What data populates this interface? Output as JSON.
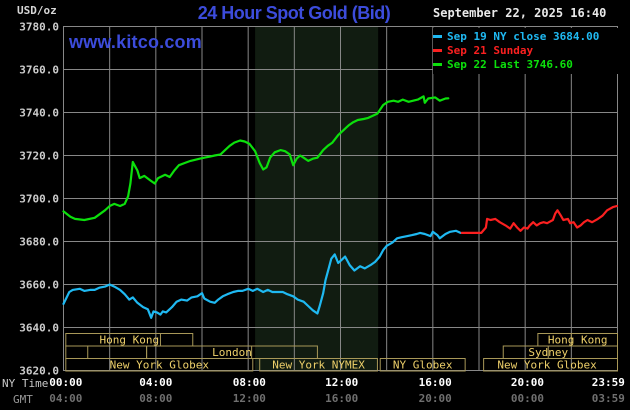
{
  "header": {
    "units_label": "USD/oz",
    "title": "24 Hour Spot Gold (Bid)",
    "datetime": "September 22, 2025 16:40",
    "watermark": "www.kitco.com"
  },
  "legend": {
    "position": "top-right",
    "items": [
      {
        "label": "Sep 19 NY close 3684.00",
        "color": "#1fb9f2"
      },
      {
        "label": "Sep 21 Sunday",
        "color": "#fb2020"
      },
      {
        "label": "Sep 22 Last 3746.60",
        "color": "#0ce00c"
      }
    ]
  },
  "axes": {
    "ny_label": "NY Time",
    "gmt_label": "GMT",
    "y_ticks": [
      {
        "value": 3780,
        "label": "3780.0"
      },
      {
        "value": 3760,
        "label": "3760.0"
      },
      {
        "value": 3740,
        "label": "3740.0"
      },
      {
        "value": 3720,
        "label": "3720.0"
      },
      {
        "value": 3700,
        "label": "3700.0"
      },
      {
        "value": 3680,
        "label": "3680.0"
      },
      {
        "value": 3660,
        "label": "3660.0"
      },
      {
        "value": 3640,
        "label": "3640.0"
      },
      {
        "value": 3620,
        "label": "3620.0"
      }
    ],
    "x_ticks": [
      {
        "t": 0.1,
        "ny": "00:00",
        "gmt": "04:00"
      },
      {
        "t": 4.0,
        "ny": "04:00",
        "gmt": "08:00"
      },
      {
        "t": 8.05,
        "ny": "08:00",
        "gmt": "12:00"
      },
      {
        "t": 12.05,
        "ny": "12:00",
        "gmt": "16:00"
      },
      {
        "t": 16.1,
        "ny": "16:00",
        "gmt": "20:00"
      },
      {
        "t": 20.1,
        "ny": "20:00",
        "gmt": "00:00"
      },
      {
        "t": 23.6,
        "ny": "23:59",
        "gmt": "03:59"
      }
    ]
  },
  "session_style": {
    "border": "#a89858",
    "text": "#eed06a"
  },
  "sessions": [
    {
      "row": 0,
      "from": 0.1,
      "to": 5.6,
      "label": "Hong Kong",
      "dividers": [
        4.2
      ]
    },
    {
      "row": 0,
      "from": 20.55,
      "to": 24,
      "label": "Hong Kong",
      "dividers": [
        22.0
      ]
    },
    {
      "row": 1,
      "from": 0.1,
      "to": 3.6,
      "label": "",
      "dividers": [
        1.05
      ]
    },
    {
      "row": 1,
      "from": 3.6,
      "to": 11.0,
      "label": "London",
      "dividers": [
        8.15
      ]
    },
    {
      "row": 1,
      "from": 19.05,
      "to": 24,
      "label": "Sydney",
      "dividers": [
        21.0
      ],
      "label_at": 21.0
    },
    {
      "row": 2,
      "from": 0.1,
      "to": 8.2,
      "label": "New York Globex",
      "dividers": []
    },
    {
      "row": 2,
      "from": 8.5,
      "to": 13.6,
      "label": "New York NYMEX",
      "dividers": []
    },
    {
      "row": 2,
      "from": 13.72,
      "to": 17.4,
      "label": "NY Globex",
      "dividers": []
    },
    {
      "row": 2,
      "from": 18.2,
      "to": 24,
      "label": "New York Globex",
      "dividers": [],
      "label_at": 20.95
    }
  ],
  "chart_data": {
    "type": "line",
    "title": "24 Hour Spot Gold (Bid)",
    "y_unit": "USD/oz",
    "xlim": [
      0,
      24
    ],
    "ylim": [
      3620,
      3780
    ],
    "x_grid_step_hours": 2,
    "y_grid_step": 20,
    "grid": true,
    "grid_color": "#878787",
    "legend_position": "top-right",
    "session_shading": {
      "name": "New York NYMEX hours",
      "from_hour": 8.3,
      "to_hour": 13.63,
      "color": "#111c11"
    },
    "series": [
      {
        "id": "sep19",
        "name": "Sep 19 NY close",
        "close": 3684.0,
        "color": "#1fb9f2",
        "points": [
          [
            0,
            3651
          ],
          [
            0.25,
            3656.5
          ],
          [
            0.4,
            3657.5
          ],
          [
            0.7,
            3658
          ],
          [
            0.9,
            3657
          ],
          [
            1.15,
            3657.5
          ],
          [
            1.35,
            3657.5
          ],
          [
            1.55,
            3658.5
          ],
          [
            1.8,
            3659
          ],
          [
            2.0,
            3660
          ],
          [
            2.2,
            3659
          ],
          [
            2.45,
            3657.5
          ],
          [
            2.65,
            3655.5
          ],
          [
            2.85,
            3653
          ],
          [
            3.0,
            3654
          ],
          [
            3.2,
            3651.5
          ],
          [
            3.45,
            3649.5
          ],
          [
            3.65,
            3648.5
          ],
          [
            3.8,
            3644.5
          ],
          [
            3.9,
            3647.5
          ],
          [
            4.05,
            3647
          ],
          [
            4.2,
            3646
          ],
          [
            4.3,
            3647.5
          ],
          [
            4.45,
            3647
          ],
          [
            4.7,
            3649.5
          ],
          [
            4.9,
            3652
          ],
          [
            5.1,
            3653
          ],
          [
            5.35,
            3652.5
          ],
          [
            5.55,
            3654
          ],
          [
            5.8,
            3654.5
          ],
          [
            6.0,
            3656
          ],
          [
            6.1,
            3653.5
          ],
          [
            6.35,
            3652
          ],
          [
            6.55,
            3651.5
          ],
          [
            6.7,
            3653
          ],
          [
            6.9,
            3654.5
          ],
          [
            7.1,
            3655.5
          ],
          [
            7.35,
            3656.5
          ],
          [
            7.55,
            3657
          ],
          [
            7.75,
            3657
          ],
          [
            8.0,
            3658
          ],
          [
            8.2,
            3657
          ],
          [
            8.4,
            3658
          ],
          [
            8.65,
            3656.5
          ],
          [
            8.85,
            3657.5
          ],
          [
            9.05,
            3656.5
          ],
          [
            9.3,
            3656.5
          ],
          [
            9.5,
            3656.5
          ],
          [
            9.7,
            3655.5
          ],
          [
            9.95,
            3654.5
          ],
          [
            10.15,
            3653
          ],
          [
            10.4,
            3652
          ],
          [
            10.6,
            3650
          ],
          [
            10.8,
            3648
          ],
          [
            11.0,
            3646.5
          ],
          [
            11.1,
            3650
          ],
          [
            11.25,
            3656
          ],
          [
            11.35,
            3662
          ],
          [
            11.5,
            3668
          ],
          [
            11.6,
            3672
          ],
          [
            11.75,
            3674
          ],
          [
            11.9,
            3670
          ],
          [
            12.05,
            3671.5
          ],
          [
            12.2,
            3673
          ],
          [
            12.4,
            3669
          ],
          [
            12.6,
            3666.5
          ],
          [
            12.85,
            3668.5
          ],
          [
            13.05,
            3667.5
          ],
          [
            13.3,
            3669
          ],
          [
            13.5,
            3670.5
          ],
          [
            13.7,
            3673
          ],
          [
            13.85,
            3676
          ],
          [
            14.0,
            3678
          ],
          [
            14.25,
            3679.5
          ],
          [
            14.45,
            3681.5
          ],
          [
            14.65,
            3682
          ],
          [
            14.9,
            3682.5
          ],
          [
            15.1,
            3683
          ],
          [
            15.3,
            3683.5
          ],
          [
            15.45,
            3684
          ],
          [
            15.65,
            3683.5
          ],
          [
            15.9,
            3682.5
          ],
          [
            16.0,
            3684.5
          ],
          [
            16.2,
            3683
          ],
          [
            16.3,
            3681.5
          ],
          [
            16.55,
            3683.5
          ],
          [
            16.75,
            3684.5
          ],
          [
            17.0,
            3685
          ],
          [
            17.2,
            3684
          ]
        ]
      },
      {
        "id": "sep21",
        "name": "Sep 21 Sunday",
        "color": "#fb2020",
        "points": [
          [
            17.25,
            3684
          ],
          [
            18.1,
            3684
          ],
          [
            18.3,
            3686.5
          ],
          [
            18.35,
            3690.5
          ],
          [
            18.5,
            3690
          ],
          [
            18.7,
            3690.5
          ],
          [
            18.9,
            3689
          ],
          [
            19.15,
            3687.5
          ],
          [
            19.35,
            3686
          ],
          [
            19.5,
            3688.5
          ],
          [
            19.65,
            3686.5
          ],
          [
            19.8,
            3685
          ],
          [
            19.95,
            3686.5
          ],
          [
            20.1,
            3686
          ],
          [
            20.2,
            3687.5
          ],
          [
            20.35,
            3689
          ],
          [
            20.5,
            3687.5
          ],
          [
            20.65,
            3688.5
          ],
          [
            20.8,
            3689
          ],
          [
            20.95,
            3688.5
          ],
          [
            21.2,
            3690
          ],
          [
            21.3,
            3693
          ],
          [
            21.4,
            3694.5
          ],
          [
            21.55,
            3692
          ],
          [
            21.65,
            3690
          ],
          [
            21.85,
            3690.5
          ],
          [
            21.95,
            3688.5
          ],
          [
            22.1,
            3689
          ],
          [
            22.25,
            3686.5
          ],
          [
            22.4,
            3687.5
          ],
          [
            22.55,
            3689
          ],
          [
            22.7,
            3690
          ],
          [
            22.9,
            3689
          ],
          [
            23.15,
            3690.5
          ],
          [
            23.35,
            3692
          ],
          [
            23.55,
            3694.5
          ],
          [
            23.8,
            3696
          ],
          [
            23.98,
            3696.5
          ]
        ]
      },
      {
        "id": "sep22",
        "name": "Sep 22",
        "last": 3746.6,
        "color": "#0ce00c",
        "points": [
          [
            0,
            3694
          ],
          [
            0.3,
            3691.5
          ],
          [
            0.5,
            3690.5
          ],
          [
            0.9,
            3690
          ],
          [
            1.35,
            3691
          ],
          [
            1.8,
            3694.5
          ],
          [
            2.0,
            3696.5
          ],
          [
            2.2,
            3697.5
          ],
          [
            2.45,
            3696.5
          ],
          [
            2.65,
            3697.5
          ],
          [
            2.8,
            3701
          ],
          [
            2.9,
            3707
          ],
          [
            3.0,
            3717
          ],
          [
            3.1,
            3715
          ],
          [
            3.2,
            3713
          ],
          [
            3.3,
            3709.5
          ],
          [
            3.5,
            3710.5
          ],
          [
            3.75,
            3708.5
          ],
          [
            3.95,
            3707
          ],
          [
            4.1,
            3709.5
          ],
          [
            4.4,
            3711
          ],
          [
            4.6,
            3710
          ],
          [
            4.8,
            3713
          ],
          [
            5.0,
            3715.5
          ],
          [
            5.25,
            3716.5
          ],
          [
            5.5,
            3717.5
          ],
          [
            5.7,
            3718
          ],
          [
            5.9,
            3718.5
          ],
          [
            6.1,
            3719
          ],
          [
            6.35,
            3719.5
          ],
          [
            6.55,
            3720
          ],
          [
            6.8,
            3720.5
          ],
          [
            7.0,
            3722.5
          ],
          [
            7.2,
            3724.5
          ],
          [
            7.4,
            3726
          ],
          [
            7.65,
            3727
          ],
          [
            7.85,
            3726.5
          ],
          [
            8.05,
            3725.5
          ],
          [
            8.3,
            3722
          ],
          [
            8.5,
            3716.5
          ],
          [
            8.65,
            3713.5
          ],
          [
            8.8,
            3714.5
          ],
          [
            8.95,
            3719
          ],
          [
            9.15,
            3721.5
          ],
          [
            9.4,
            3722.5
          ],
          [
            9.6,
            3722
          ],
          [
            9.8,
            3720.5
          ],
          [
            9.95,
            3715.5
          ],
          [
            10.1,
            3718.5
          ],
          [
            10.25,
            3720
          ],
          [
            10.4,
            3719
          ],
          [
            10.6,
            3717.5
          ],
          [
            10.8,
            3718.5
          ],
          [
            11.0,
            3719
          ],
          [
            11.25,
            3722.5
          ],
          [
            11.45,
            3724.5
          ],
          [
            11.65,
            3726
          ],
          [
            11.9,
            3729.5
          ],
          [
            12.1,
            3731.5
          ],
          [
            12.35,
            3734
          ],
          [
            12.55,
            3735.5
          ],
          [
            12.75,
            3736.5
          ],
          [
            13.0,
            3737
          ],
          [
            13.2,
            3737.5
          ],
          [
            13.4,
            3738.5
          ],
          [
            13.6,
            3739.5
          ],
          [
            13.85,
            3743.5
          ],
          [
            14.05,
            3745
          ],
          [
            14.3,
            3745.5
          ],
          [
            14.5,
            3745
          ],
          [
            14.7,
            3746
          ],
          [
            14.95,
            3745
          ],
          [
            15.15,
            3745.5
          ],
          [
            15.35,
            3746
          ],
          [
            15.6,
            3747.5
          ],
          [
            15.65,
            3744.5
          ],
          [
            15.8,
            3746.5
          ],
          [
            16.1,
            3747
          ],
          [
            16.3,
            3745.5
          ],
          [
            16.55,
            3746.5
          ],
          [
            16.67,
            3746.6
          ]
        ]
      }
    ]
  }
}
